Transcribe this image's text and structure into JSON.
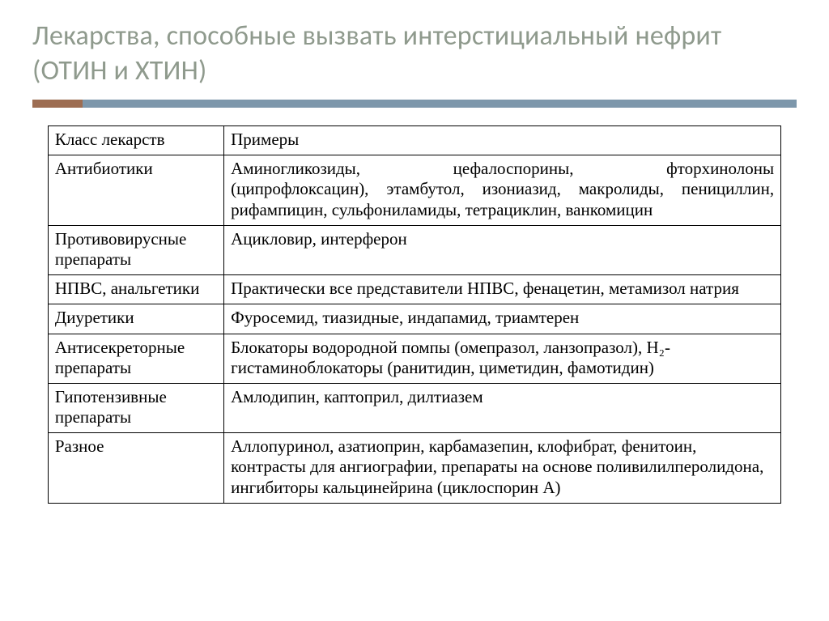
{
  "title": "Лекарства, способные вызвать интерстициальный нефрит (ОТИН и ХТИН)",
  "bar": {
    "accent_color": "#9d6d52",
    "main_color": "#7d97ab"
  },
  "table": {
    "columns": [
      "Класс лекарств",
      "Примеры"
    ],
    "rows": [
      {
        "class_label": "Антибиотики",
        "examples_line1": "Аминогликозиды, цефалоспорины, фторхинолоны",
        "examples_rest": "(ципрофлоксацин), этамбутол, изониазид, макролиды, пенициллин, рифампицин, сульфониламиды, тетрациклин, ванкомицин",
        "justify_first": true
      },
      {
        "class_label": "Противовирусные препараты",
        "examples": "Ацикловир, интерферон"
      },
      {
        "class_label": "НПВС, анальгетики",
        "examples": "Практически все представители НПВС, фенацетин, метамизол натрия",
        "justify": true
      },
      {
        "class_label": "Диуретики",
        "examples": "Фуросемид, тиазидные, индапамид, триамтерен"
      },
      {
        "class_label": "Антисекреторные препараты",
        "examples": "Блокаторы водородной помпы (омепразол, ланзопразол), Н₂-гистаминоблокаторы (ранитидин, циметидин, фамотидин)",
        "justify": true
      },
      {
        "class_label": "Гипотензивные препараты",
        "examples": "Амлодипин, каптоприл, дилтиазем"
      },
      {
        "class_label": "Разное",
        "examples": "Аллопуринол, азатиоприн, карбамазепин, клофибрат, фенитоин, контрасты для ангиографии, препараты на основе поливилилперолидона, ингибиторы кальцинейрина (циклоспорин А)",
        "justify": true
      }
    ]
  }
}
